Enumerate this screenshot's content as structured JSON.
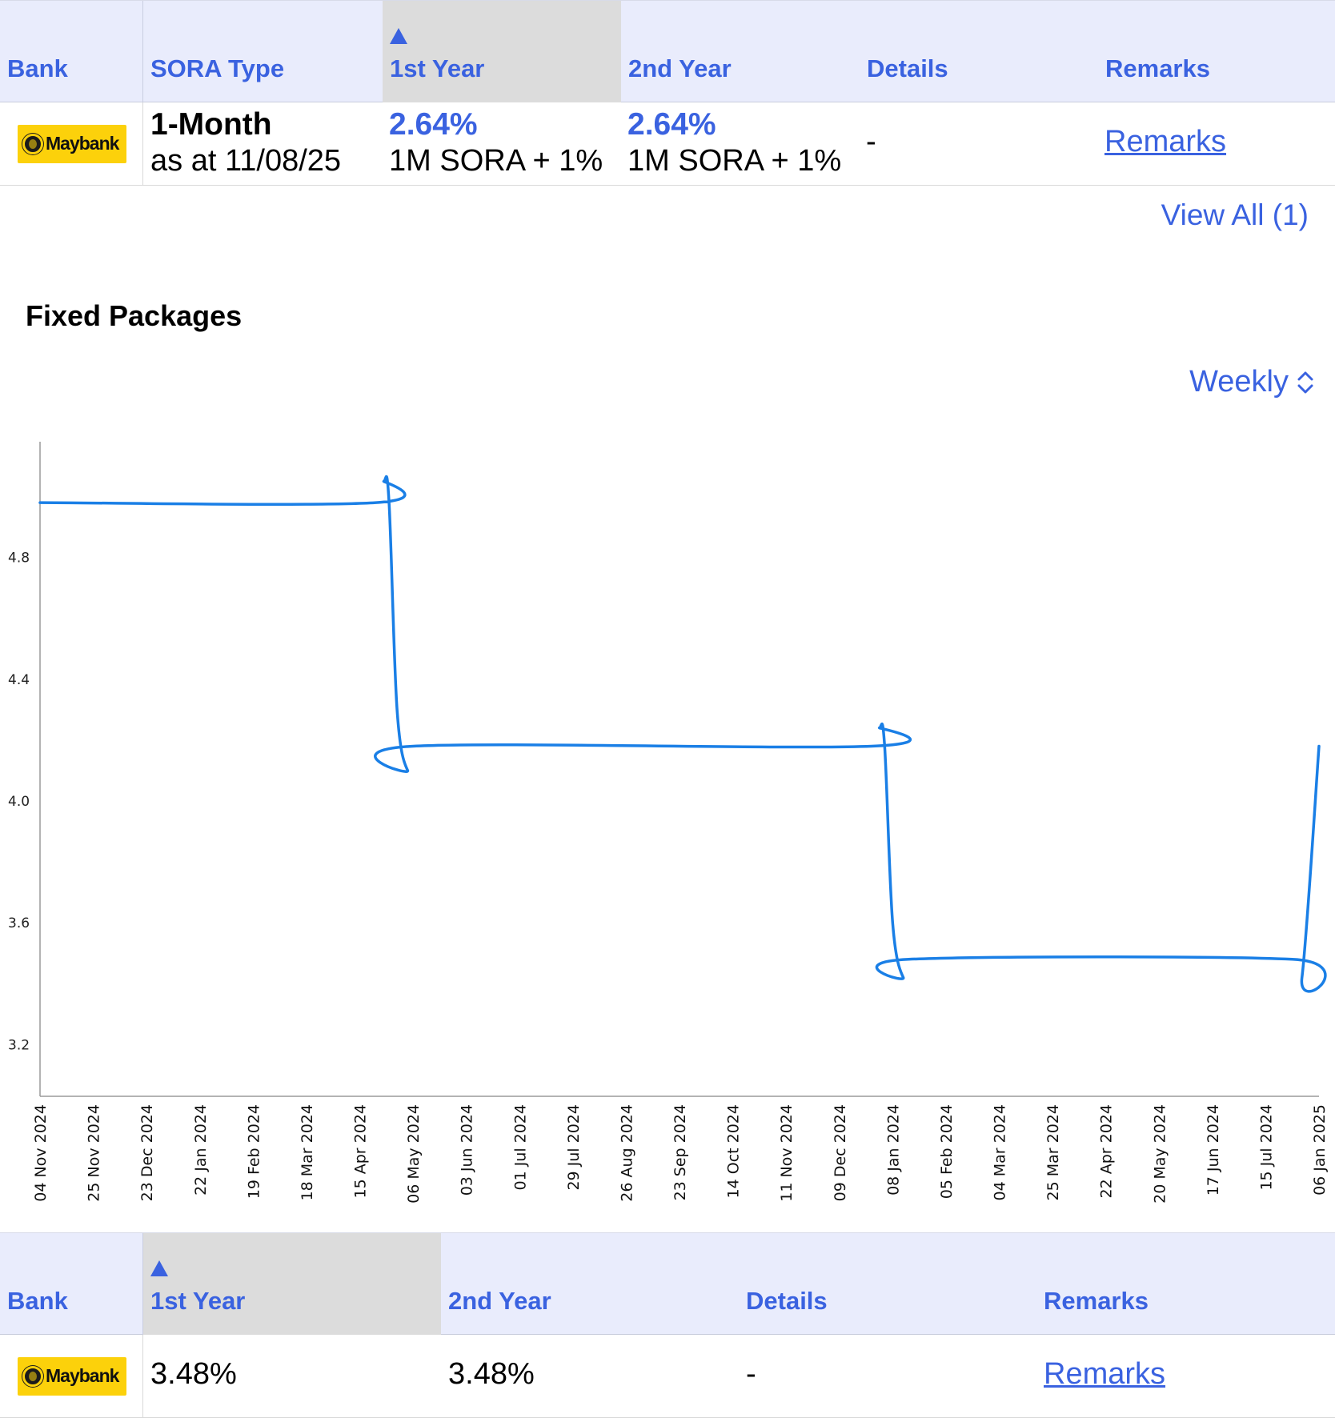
{
  "floating_table": {
    "headers": {
      "bank": "Bank",
      "sora_type": "SORA Type",
      "first_year": "1st Year",
      "second_year": "2nd Year",
      "details": "Details",
      "remarks": "Remarks"
    },
    "sorted_column": "first_year",
    "row": {
      "bank_logo_text": "Maybank",
      "sora_type": "1-Month",
      "as_at": "as at 11/08/25",
      "first_year_rate": "2.64%",
      "first_year_formula": "1M SORA + 1%",
      "second_year_rate": "2.64%",
      "second_year_formula": "1M SORA + 1%",
      "details": "-",
      "remarks_link": "Remarks"
    },
    "view_all": "View All (1)"
  },
  "fixed_section": {
    "title": "Fixed Packages",
    "period_selector": "Weekly",
    "period_icon": "chevron-up-down-icon"
  },
  "chart_data": {
    "type": "line",
    "title": "",
    "xlabel": "",
    "ylabel": "",
    "ylim": [
      3.03,
      5.18
    ],
    "y_ticks": [
      3.2,
      3.6,
      4.0,
      4.4,
      4.8
    ],
    "grid": false,
    "line_color": "#1a7fe6",
    "x_tick_labels": [
      "04 Nov 2024",
      "25 Nov 2024",
      "23 Dec 2024",
      "22 Jan 2024",
      "19 Feb 2024",
      "18 Mar 2024",
      "15 Apr 2024",
      "06 May 2024",
      "03 Jun 2024",
      "01 Jul 2024",
      "29 Jul 2024",
      "26 Aug 2024",
      "23 Sep 2024",
      "14 Oct 2024",
      "11 Nov 2024",
      "09 Dec 2024",
      "08 Jan 2024",
      "05 Feb 2024",
      "04 Mar 2024",
      "25 Mar 2024",
      "22 Apr 2024",
      "20 May 2024",
      "17 Jun 2024",
      "15 Jul 2024",
      "06 Jan 2025"
    ],
    "series": [
      {
        "x_index": [
          0,
          6.3,
          6.45,
          6.55,
          6.7,
          6.9,
          7.0,
          15.6,
          15.75,
          15.85,
          16.0,
          16.2,
          16.3,
          23.5,
          23.68,
          24.0
        ],
        "values": [
          4.98,
          4.98,
          5.05,
          4.98,
          4.3,
          4.1,
          4.18,
          4.18,
          4.24,
          4.18,
          3.6,
          3.42,
          3.48,
          3.48,
          3.42,
          4.18
        ]
      }
    ]
  },
  "fixed_table": {
    "headers": {
      "bank": "Bank",
      "first_year": "1st Year",
      "second_year": "2nd Year",
      "details": "Details",
      "remarks": "Remarks"
    },
    "sorted_column": "first_year",
    "row": {
      "bank_logo_text": "Maybank",
      "first_year_rate": "3.48%",
      "second_year_rate": "3.48%",
      "details": "-",
      "remarks_link": "Remarks"
    }
  }
}
